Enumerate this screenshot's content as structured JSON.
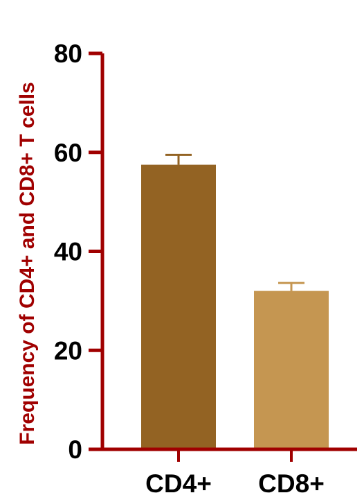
{
  "chart_data": {
    "type": "bar",
    "title": "",
    "xlabel": "",
    "ylabel": "Frequency of CD4+ and CD8+ T cells",
    "ylim": [
      0,
      80
    ],
    "yticks": [
      "0",
      "20",
      "40",
      "60",
      "80"
    ],
    "categories": [
      "CD4+",
      "CD8+"
    ],
    "series": [
      {
        "values": [
          57.5,
          32.0
        ],
        "error": [
          2.0,
          1.6
        ]
      }
    ],
    "grid": false,
    "legend": "none"
  },
  "colors": {
    "axis": "#a00000",
    "bar_cd4": "#936323",
    "bar_cd8": "#c59651",
    "errorbar_cd4": "#936323",
    "errorbar_cd8": "#c59651"
  }
}
